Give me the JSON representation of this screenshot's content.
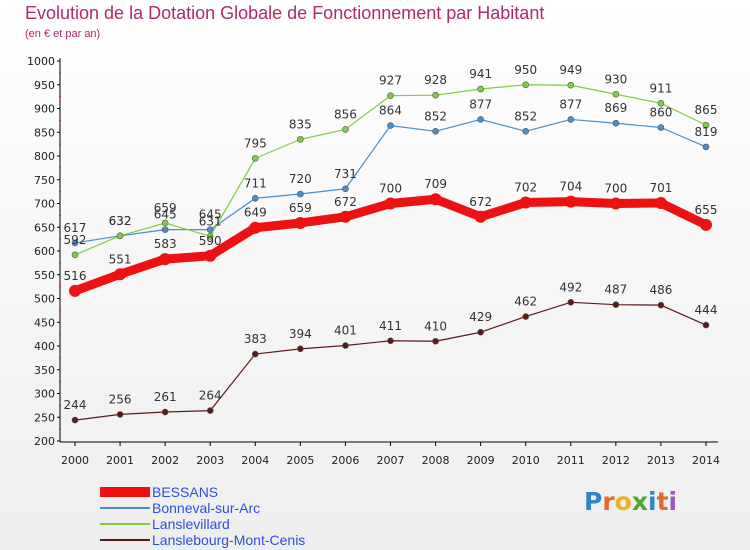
{
  "header": {
    "title": "Evolution de la Dotation Globale de Fonctionnement par Habitant",
    "subtitle": "(en € et par an)"
  },
  "brand": {
    "letters": [
      "P",
      "r",
      "o",
      "x",
      "i",
      "t",
      "i"
    ],
    "colors": [
      "#2e86c8",
      "#e36a2d",
      "#f2b01e",
      "#55a532",
      "#2e86c8",
      "#e36a2d",
      "#9b59b6"
    ]
  },
  "chart_data": {
    "type": "line",
    "title": "Evolution de la Dotation Globale de Fonctionnement par Habitant",
    "subtitle": "(en € et par an)",
    "xlabel": "",
    "ylabel": "",
    "x": [
      "2000",
      "2001",
      "2002",
      "2003",
      "2004",
      "2005",
      "2006",
      "2007",
      "2008",
      "2009",
      "2010",
      "2011",
      "2012",
      "2013",
      "2014"
    ],
    "ylim": [
      200,
      1000
    ],
    "yticks": [
      200,
      250,
      300,
      350,
      400,
      450,
      500,
      550,
      600,
      650,
      700,
      750,
      800,
      850,
      900,
      950,
      1000
    ],
    "grid": false,
    "legend_position": "bottom-left",
    "series": [
      {
        "name": "Lanslebourg-Mont-Cenis",
        "color": "#5a1a1a",
        "values": [
          244,
          256,
          261,
          264,
          383,
          394,
          401,
          411,
          410,
          429,
          462,
          492,
          487,
          486,
          444
        ]
      },
      {
        "name": "Bonneval-sur-Arc",
        "color": "#4a8fc8",
        "values": [
          617,
          632,
          645,
          645,
          711,
          720,
          731,
          864,
          852,
          877,
          852,
          877,
          869,
          860,
          819
        ]
      },
      {
        "name": "Lanslevillard",
        "color": "#7fce3c",
        "values": [
          592,
          632,
          659,
          631,
          795,
          835,
          856,
          927,
          928,
          941,
          950,
          949,
          930,
          911,
          865
        ]
      },
      {
        "name": "BESSANS",
        "color": "#ee1111",
        "values": [
          516,
          551,
          583,
          590,
          649,
          659,
          672,
          700,
          709,
          672,
          702,
          704,
          700,
          701,
          655
        ]
      }
    ],
    "data_labels": {
      "Lanslebourg-Mont-Cenis": [
        "244",
        "256",
        "261",
        "264",
        "383",
        "394",
        "401",
        "411",
        "410",
        "429",
        "462",
        "492",
        "487",
        "486",
        "444"
      ],
      "Bonneval-sur-Arc": [
        "617",
        "632",
        "645",
        "645",
        "711",
        "720",
        "731",
        "864",
        "852",
        "877",
        "852",
        "877",
        "869",
        "860",
        "819"
      ],
      "Lanslevillard": [
        "592",
        "632",
        "659",
        "631",
        "795",
        "835",
        "856",
        "927",
        "928",
        "941",
        "950",
        "949",
        "930",
        "911",
        "865"
      ],
      "BESSANS": [
        "516",
        "551",
        "583",
        "590",
        "649",
        "659",
        "672",
        "700",
        "709",
        "672",
        "702",
        "704",
        "700",
        "701",
        "655"
      ]
    },
    "legend": [
      "BESSANS",
      "Bonneval-sur-Arc",
      "Lanslevillard",
      "Lanslebourg-Mont-Cenis"
    ]
  }
}
